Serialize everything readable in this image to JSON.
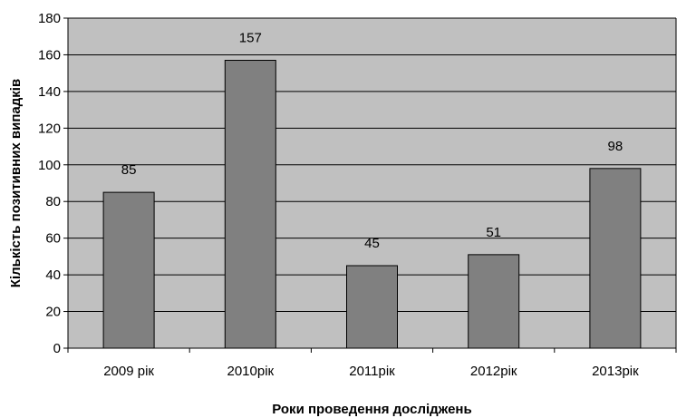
{
  "chart_data": {
    "type": "bar",
    "categories": [
      "2009 рік",
      "2010рік",
      "2011рік",
      "2012рік",
      "2013рік"
    ],
    "values": [
      85,
      157,
      45,
      51,
      98
    ],
    "data_labels": [
      "85",
      "157",
      "45",
      "51",
      "98"
    ],
    "title": "",
    "xlabel": "Роки проведення досліджень",
    "ylabel": "Кількість позитивних випадків",
    "ylim": [
      0,
      180
    ],
    "yticks": [
      "0",
      "20",
      "40",
      "60",
      "80",
      "100",
      "120",
      "140",
      "160",
      "180"
    ],
    "grid": true,
    "plot_background": "#c0c0c0",
    "bar_color": "#808080",
    "legend": "none"
  }
}
